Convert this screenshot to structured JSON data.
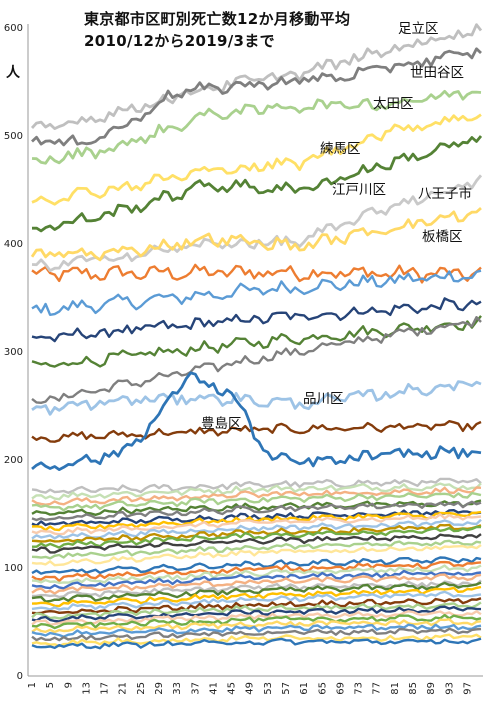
{
  "chart_data": {
    "type": "line",
    "title": "東京都市区町別死亡数12か月移動平均",
    "subtitle": "2010/12から2019/3まで",
    "ylabel": "人",
    "ylim": [
      0,
      600
    ],
    "yticks": [
      0,
      100,
      200,
      300,
      400,
      500,
      600
    ],
    "xlim": [
      1,
      100
    ],
    "xticks": [
      1,
      5,
      9,
      13,
      17,
      21,
      25,
      29,
      33,
      37,
      41,
      45,
      49,
      53,
      57,
      61,
      65,
      69,
      73,
      77,
      81,
      85,
      89,
      93,
      97
    ],
    "grid": false,
    "labeled_series": [
      {
        "name": "足立区",
        "color": "#bfbfbf",
        "points": [
          [
            1,
            505
          ],
          [
            20,
            522
          ],
          [
            40,
            545
          ],
          [
            60,
            558
          ],
          [
            80,
            580
          ],
          [
            100,
            600
          ]
        ]
      },
      {
        "name": "世田谷区",
        "color": "#7f7f7f",
        "points": [
          [
            1,
            495
          ],
          [
            12,
            494
          ],
          [
            22,
            510
          ],
          [
            32,
            540
          ],
          [
            50,
            548
          ],
          [
            70,
            555
          ],
          [
            85,
            568
          ],
          [
            100,
            578
          ]
        ]
      },
      {
        "name": "太田区",
        "color": "#a9d18e",
        "points": [
          [
            1,
            475
          ],
          [
            20,
            490
          ],
          [
            40,
            520
          ],
          [
            60,
            528
          ],
          [
            80,
            530
          ],
          [
            100,
            542
          ]
        ]
      },
      {
        "name": "練馬区",
        "color": "#ffe066",
        "points": [
          [
            1,
            440
          ],
          [
            20,
            452
          ],
          [
            40,
            468
          ],
          [
            60,
            475
          ],
          [
            80,
            505
          ],
          [
            100,
            520
          ]
        ]
      },
      {
        "name": "江戸川区",
        "color": "#548235",
        "points": [
          [
            1,
            412
          ],
          [
            20,
            430
          ],
          [
            40,
            455
          ],
          [
            60,
            450
          ],
          [
            80,
            475
          ],
          [
            100,
            498
          ]
        ]
      },
      {
        "name": "八王子市",
        "color": "#c9c9c9",
        "points": [
          [
            1,
            378
          ],
          [
            20,
            388
          ],
          [
            40,
            400
          ],
          [
            60,
            402
          ],
          [
            80,
            435
          ],
          [
            100,
            458
          ]
        ]
      },
      {
        "name": "板橋区",
        "color": "#ffd966",
        "points": [
          [
            1,
            390
          ],
          [
            20,
            392
          ],
          [
            40,
            405
          ],
          [
            60,
            398
          ],
          [
            80,
            415
          ],
          [
            100,
            430
          ]
        ]
      },
      {
        "name": "品川区",
        "color": "#9dc3e6",
        "points": [
          [
            1,
            245
          ],
          [
            20,
            255
          ],
          [
            40,
            258
          ],
          [
            60,
            252
          ],
          [
            80,
            262
          ],
          [
            100,
            272
          ]
        ]
      },
      {
        "name": "豊島区",
        "color": "#2e75b6",
        "points": [
          [
            1,
            192
          ],
          [
            20,
            205
          ],
          [
            28,
            235
          ],
          [
            35,
            278
          ],
          [
            45,
            262
          ],
          [
            50,
            225
          ],
          [
            54,
            200
          ],
          [
            65,
            198
          ],
          [
            80,
            205
          ],
          [
            100,
            208
          ]
        ]
      }
    ],
    "other_series_count": 40
  },
  "annotations": {
    "adachi": "足立区",
    "setagaya": "世田谷区",
    "ota": "太田区",
    "nerima": "練馬区",
    "edogawa": "江戸川区",
    "hachioji": "八王子市",
    "itabashi": "板橋区",
    "shinagawa": "品川区",
    "toshima": "豊島区"
  }
}
